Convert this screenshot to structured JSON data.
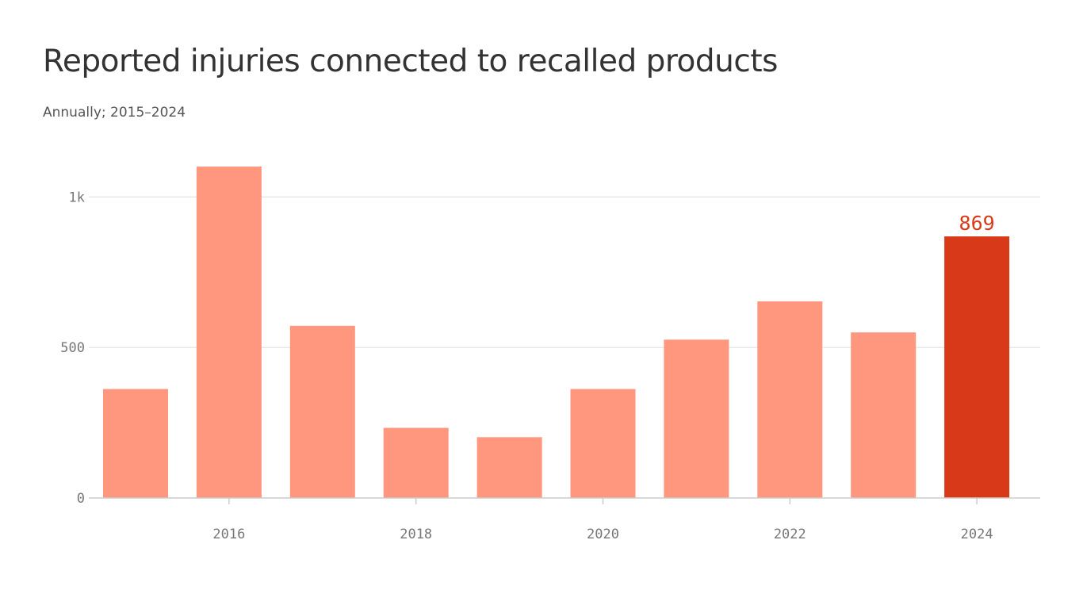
{
  "chart_data": {
    "type": "bar",
    "title": "Reported injuries connected to recalled products",
    "subtitle": "Annually; 2015–2024",
    "xlabel": "",
    "ylabel": "",
    "x": [
      2015,
      2016,
      2017,
      2018,
      2019,
      2020,
      2021,
      2022,
      2023,
      2024
    ],
    "values": [
      362,
      1101,
      572,
      233,
      202,
      362,
      526,
      653,
      550,
      869
    ],
    "ylim": [
      0,
      1150
    ],
    "y_ticks": [
      {
        "value": 0,
        "label": "0"
      },
      {
        "value": 500,
        "label": "500"
      },
      {
        "value": 1000,
        "label": "1k"
      }
    ],
    "x_ticks": [
      {
        "value": 2016,
        "label": "2016"
      },
      {
        "value": 2018,
        "label": "2018"
      },
      {
        "value": 2020,
        "label": "2020"
      },
      {
        "value": 2022,
        "label": "2022"
      },
      {
        "value": 2024,
        "label": "2024"
      }
    ],
    "highlight": {
      "x": 2024,
      "label": "869"
    },
    "grid": true,
    "legend": "none",
    "colors": {
      "bar": "#ff967e",
      "highlight": "#d83918",
      "grid": "#e1e1e1",
      "axis": "#cccccc"
    }
  }
}
